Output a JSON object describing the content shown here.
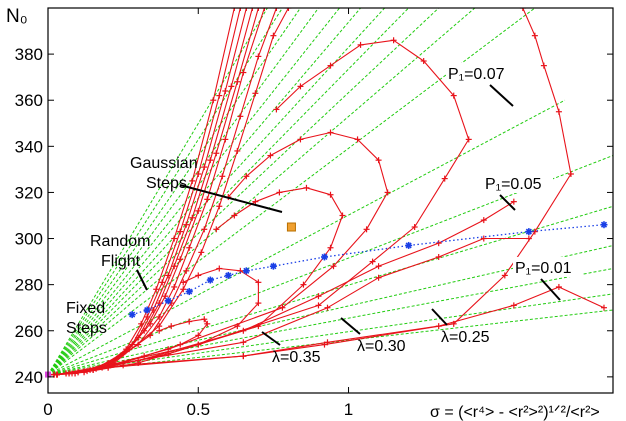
{
  "chart_data": {
    "type": "line",
    "title": "",
    "xlabel": "σ = (<r⁴> - <r²>²)¹ᐟ²/<r²>",
    "ylabel": "N₀",
    "xlim": [
      0,
      1.88
    ],
    "ylim": [
      233,
      400
    ],
    "xticks": [
      0,
      0.5,
      1
    ],
    "xtick_labels": [
      "0",
      "0.5",
      "1"
    ],
    "yticks": [
      240,
      260,
      280,
      300,
      320,
      340,
      360,
      380
    ],
    "ytick_labels": [
      "240",
      "260",
      "280",
      "300",
      "320",
      "340",
      "360",
      "380"
    ],
    "grid": false,
    "legend": "none",
    "colors": {
      "red_curves": "#e8131b",
      "green_lines": "#22cc11",
      "blue_points": "#1a3fe6",
      "gaussian_marker": "#f0a030",
      "fixed_marker": "#dd44dd"
    },
    "annotations": {
      "gaussian_line1": "Gaussian",
      "gaussian_line2": "Steps",
      "random_line1": "Random",
      "random_line2": "Flight",
      "fixed_line1": "Fixed",
      "fixed_line2": "Steps",
      "p1_007": "P₁=0.07",
      "p1_005": "P₁=0.05",
      "p1_001": "P₁=0.01",
      "lambda_035": "λ=0.35",
      "lambda_030": "λ=0.30",
      "lambda_025": "λ=0.25"
    },
    "series": [
      {
        "color": "#e8131b",
        "values": [
          [
            0.02,
            241
          ],
          [
            0.06,
            241.5
          ],
          [
            0.12,
            242.5
          ],
          [
            0.2,
            246
          ],
          [
            0.26,
            252
          ],
          [
            0.31,
            263
          ],
          [
            0.36,
            278
          ],
          [
            0.42,
            300
          ],
          [
            0.48,
            325
          ],
          [
            0.55,
            360
          ],
          [
            0.62,
            400
          ]
        ]
      },
      {
        "color": "#e8131b",
        "values": [
          [
            0.02,
            241
          ],
          [
            0.06,
            241.5
          ],
          [
            0.13,
            242.5
          ],
          [
            0.22,
            247
          ],
          [
            0.28,
            254
          ],
          [
            0.33,
            266
          ],
          [
            0.38,
            281
          ],
          [
            0.44,
            303
          ],
          [
            0.5,
            328
          ],
          [
            0.57,
            362
          ],
          [
            0.64,
            400
          ]
        ]
      },
      {
        "color": "#e8131b",
        "values": [
          [
            0.02,
            241
          ],
          [
            0.07,
            241.5
          ],
          [
            0.14,
            243
          ],
          [
            0.23,
            248
          ],
          [
            0.3,
            257
          ],
          [
            0.35,
            269
          ],
          [
            0.4,
            284
          ],
          [
            0.46,
            306
          ],
          [
            0.52,
            331
          ],
          [
            0.59,
            364
          ],
          [
            0.66,
            400
          ]
        ]
      },
      {
        "color": "#e8131b",
        "values": [
          [
            0.02,
            241
          ],
          [
            0.07,
            241.5
          ],
          [
            0.15,
            243
          ],
          [
            0.25,
            250
          ],
          [
            0.32,
            260
          ],
          [
            0.37,
            272
          ],
          [
            0.42,
            288
          ],
          [
            0.48,
            309
          ],
          [
            0.54,
            334
          ],
          [
            0.61,
            366
          ],
          [
            0.68,
            400
          ]
        ]
      },
      {
        "color": "#e8131b",
        "values": [
          [
            0.02,
            241
          ],
          [
            0.08,
            241.5
          ],
          [
            0.16,
            243.5
          ],
          [
            0.27,
            252
          ],
          [
            0.34,
            263
          ],
          [
            0.39,
            275
          ],
          [
            0.44,
            291
          ],
          [
            0.5,
            312
          ],
          [
            0.56,
            337
          ],
          [
            0.63,
            368
          ],
          [
            0.7,
            400
          ]
        ]
      },
      {
        "color": "#e8131b",
        "values": [
          [
            0.03,
            241
          ],
          [
            0.09,
            241.5
          ],
          [
            0.18,
            244
          ],
          [
            0.3,
            254
          ],
          [
            0.37,
            266
          ],
          [
            0.42,
            279
          ],
          [
            0.47,
            296
          ],
          [
            0.53,
            317
          ],
          [
            0.59,
            343
          ],
          [
            0.65,
            372
          ],
          [
            0.72,
            400
          ]
        ]
      },
      {
        "color": "#e8131b",
        "values": [
          [
            0.03,
            241
          ],
          [
            0.1,
            242
          ],
          [
            0.2,
            245
          ],
          [
            0.34,
            258
          ],
          [
            0.41,
            272
          ],
          [
            0.46,
            286
          ],
          [
            0.52,
            304
          ],
          [
            0.58,
            327
          ],
          [
            0.64,
            353
          ],
          [
            0.7,
            379
          ],
          [
            0.76,
            400
          ]
        ]
      },
      {
        "color": "#e8131b",
        "values": [
          [
            0.03,
            241
          ],
          [
            0.1,
            242
          ],
          [
            0.22,
            246
          ],
          [
            0.37,
            262
          ],
          [
            0.45,
            278
          ],
          [
            0.51,
            294
          ],
          [
            0.57,
            314
          ],
          [
            0.63,
            338
          ],
          [
            0.69,
            363
          ],
          [
            0.75,
            388
          ],
          [
            0.8,
            400
          ]
        ]
      },
      {
        "color": "#e8131b",
        "values": [
          [
            0.03,
            241
          ],
          [
            0.09,
            241.5
          ],
          [
            0.2,
            244
          ],
          [
            0.32,
            249
          ],
          [
            0.44,
            254
          ],
          [
            0.5,
            258
          ],
          [
            0.53,
            263
          ],
          [
            0.52,
            265
          ],
          [
            0.47,
            264
          ],
          [
            0.41,
            262
          ],
          [
            0.37,
            260
          ]
        ]
      },
      {
        "color": "#e8131b",
        "values": [
          [
            0.03,
            241
          ],
          [
            0.12,
            242
          ],
          [
            0.3,
            246
          ],
          [
            0.5,
            254
          ],
          [
            0.63,
            262
          ],
          [
            0.7,
            272
          ],
          [
            0.7,
            281
          ],
          [
            0.64,
            286
          ],
          [
            0.57,
            287
          ],
          [
            0.5,
            284
          ],
          [
            0.45,
            281
          ]
        ]
      },
      {
        "color": "#e8131b",
        "values": [
          [
            0.03,
            241
          ],
          [
            0.15,
            243
          ],
          [
            0.4,
            250
          ],
          [
            0.7,
            262
          ],
          [
            0.85,
            280
          ],
          [
            0.94,
            296
          ],
          [
            0.98,
            310
          ],
          [
            0.94,
            319
          ],
          [
            0.86,
            322
          ],
          [
            0.77,
            320
          ],
          [
            0.69,
            316
          ],
          [
            0.62,
            310
          ],
          [
            0.56,
            304
          ]
        ]
      },
      {
        "color": "#e8131b",
        "values": [
          [
            0.03,
            241
          ],
          [
            0.15,
            243
          ],
          [
            0.4,
            252
          ],
          [
            0.78,
            270
          ],
          [
            0.95,
            288
          ],
          [
            1.06,
            304
          ],
          [
            1.13,
            320
          ],
          [
            1.1,
            334
          ],
          [
            1.03,
            343
          ],
          [
            0.94,
            346
          ],
          [
            0.84,
            343
          ],
          [
            0.74,
            336
          ],
          [
            0.66,
            327
          ],
          [
            0.6,
            318
          ]
        ]
      },
      {
        "color": "#e8131b",
        "values": [
          [
            0.03,
            241
          ],
          [
            0.2,
            245
          ],
          [
            0.5,
            254
          ],
          [
            0.9,
            271
          ],
          [
            1.08,
            290
          ],
          [
            1.22,
            305
          ],
          [
            1.32,
            326
          ],
          [
            1.4,
            343
          ],
          [
            1.35,
            362
          ],
          [
            1.25,
            377
          ],
          [
            1.15,
            386
          ],
          [
            1.04,
            384
          ],
          [
            0.94,
            375
          ],
          [
            0.84,
            366
          ],
          [
            0.76,
            356
          ]
        ]
      },
      {
        "color": "#e8131b",
        "values": [
          [
            0.03,
            241
          ],
          [
            0.2,
            244
          ],
          [
            0.65,
            249
          ],
          [
            0.92,
            254
          ],
          [
            1.35,
            263
          ],
          [
            1.52,
            284
          ],
          [
            1.62,
            303
          ],
          [
            1.74,
            328
          ],
          [
            1.7,
            355
          ],
          [
            1.65,
            375
          ],
          [
            1.62,
            388
          ],
          [
            1.58,
            400
          ]
        ]
      },
      {
        "color": "#e8131b",
        "values": [
          [
            0.03,
            241
          ],
          [
            0.25,
            246
          ],
          [
            0.65,
            255
          ],
          [
            0.93,
            270
          ],
          [
            1.1,
            283
          ],
          [
            1.3,
            292
          ],
          [
            1.45,
            300
          ],
          [
            1.6,
            300
          ]
        ]
      },
      {
        "color": "#e8131b",
        "values": [
          [
            0.03,
            241
          ],
          [
            0.25,
            245
          ],
          [
            0.65,
            249
          ],
          [
            0.93,
            255
          ],
          [
            1.3,
            262
          ],
          [
            1.55,
            271
          ],
          [
            1.7,
            279
          ],
          [
            1.85,
            270
          ]
        ]
      },
      {
        "color": "#e8131b",
        "values": [
          [
            0.03,
            241
          ],
          [
            0.3,
            247
          ],
          [
            0.65,
            260
          ],
          [
            0.9,
            275
          ],
          [
            1.1,
            288
          ],
          [
            1.3,
            298
          ],
          [
            1.45,
            308
          ],
          [
            1.55,
            316
          ]
        ]
      },
      {
        "color": "#22cc11",
        "dashed": true,
        "values": [
          [
            0.0,
            241
          ],
          [
            1.88,
            269
          ]
        ]
      },
      {
        "color": "#22cc11",
        "dashed": true,
        "values": [
          [
            0.0,
            241
          ],
          [
            1.88,
            276
          ]
        ]
      },
      {
        "color": "#22cc11",
        "dashed": true,
        "values": [
          [
            0.0,
            241
          ],
          [
            1.88,
            287
          ]
        ]
      },
      {
        "color": "#22cc11",
        "dashed": true,
        "values": [
          [
            0.0,
            241
          ],
          [
            1.88,
            297
          ]
        ]
      },
      {
        "color": "#22cc11",
        "dashed": true,
        "values": [
          [
            0.0,
            241
          ],
          [
            1.88,
            314
          ]
        ]
      },
      {
        "color": "#22cc11",
        "dashed": true,
        "values": [
          [
            0.0,
            241
          ],
          [
            1.88,
            336
          ]
        ]
      },
      {
        "color": "#22cc11",
        "dashed": true,
        "values": [
          [
            0.0,
            241
          ],
          [
            1.72,
            360
          ]
        ]
      },
      {
        "color": "#22cc11",
        "dashed": true,
        "values": [
          [
            0.0,
            241
          ],
          [
            1.62,
            400
          ]
        ]
      },
      {
        "color": "#22cc11",
        "dashed": true,
        "values": [
          [
            0.0,
            241
          ],
          [
            1.42,
            400
          ]
        ]
      },
      {
        "color": "#22cc11",
        "dashed": true,
        "values": [
          [
            0.0,
            241
          ],
          [
            1.3,
            400
          ]
        ]
      },
      {
        "color": "#22cc11",
        "dashed": true,
        "values": [
          [
            0.0,
            241
          ],
          [
            1.2,
            400
          ]
        ]
      },
      {
        "color": "#22cc11",
        "dashed": true,
        "values": [
          [
            0.0,
            241
          ],
          [
            1.12,
            400
          ]
        ]
      },
      {
        "color": "#22cc11",
        "dashed": true,
        "values": [
          [
            0.0,
            241
          ],
          [
            1.04,
            400
          ]
        ]
      },
      {
        "color": "#22cc11",
        "dashed": true,
        "values": [
          [
            0.0,
            241
          ],
          [
            0.97,
            400
          ]
        ]
      },
      {
        "color": "#22cc11",
        "dashed": true,
        "values": [
          [
            0.0,
            241
          ],
          [
            0.9,
            400
          ]
        ]
      },
      {
        "color": "#22cc11",
        "dashed": true,
        "values": [
          [
            0.0,
            241
          ],
          [
            0.84,
            400
          ]
        ]
      },
      {
        "color": "#22cc11",
        "dashed": true,
        "values": [
          [
            0.0,
            241
          ],
          [
            0.78,
            400
          ]
        ]
      },
      {
        "color": "#22cc11",
        "dashed": true,
        "values": [
          [
            0.0,
            241
          ],
          [
            0.73,
            400
          ]
        ]
      },
      {
        "color": "#1a3fe6",
        "dotted": true,
        "values": [
          [
            0.28,
            267
          ],
          [
            0.33,
            269
          ],
          [
            0.4,
            273
          ],
          [
            0.47,
            277
          ],
          [
            0.54,
            282
          ],
          [
            0.6,
            284
          ],
          [
            0.66,
            286
          ],
          [
            0.75,
            288
          ],
          [
            0.92,
            292
          ],
          [
            1.2,
            297
          ],
          [
            1.6,
            303
          ],
          [
            1.85,
            306
          ]
        ]
      }
    ],
    "markers": {
      "gaussian": [
        0.81,
        305
      ],
      "fixed": [
        0.0,
        241
      ]
    }
  }
}
